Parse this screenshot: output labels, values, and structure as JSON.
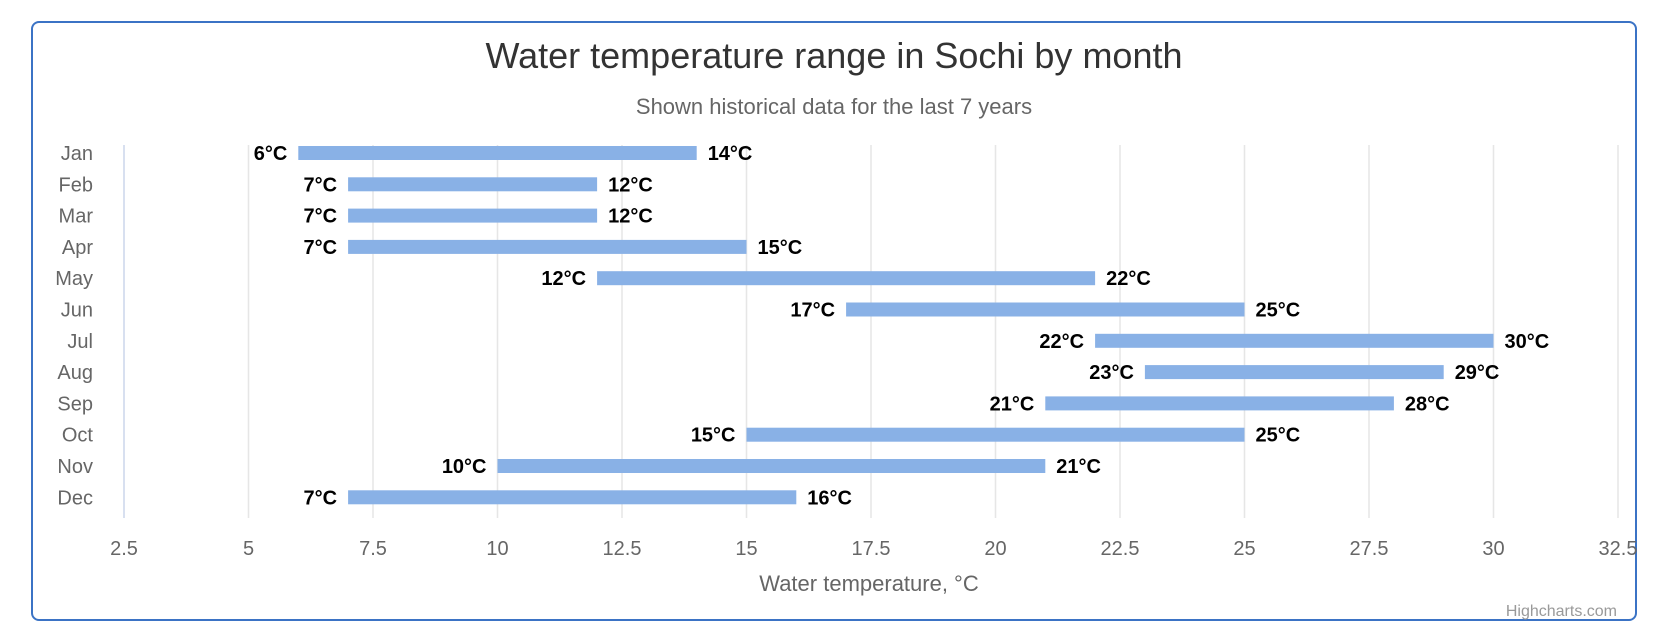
{
  "chart_data": {
    "type": "bar",
    "orientation": "horizontal",
    "variant": "columnrange",
    "title": "Water temperature range in Sochi by month",
    "subtitle": "Shown historical data for the last 7 years",
    "categories": [
      "Jan",
      "Feb",
      "Mar",
      "Apr",
      "May",
      "Jun",
      "Jul",
      "Aug",
      "Sep",
      "Oct",
      "Nov",
      "Dec"
    ],
    "series": [
      {
        "low": [
          6,
          7,
          7,
          7,
          12,
          17,
          22,
          23,
          21,
          15,
          10,
          7
        ],
        "high": [
          14,
          12,
          12,
          15,
          22,
          25,
          30,
          29,
          28,
          25,
          21,
          16
        ],
        "color": "#89b1e6"
      }
    ],
    "label_suffix": "°C",
    "xlabel": "Water temperature, °C",
    "xlim": [
      2.5,
      32.5
    ],
    "x_ticks": [
      "2.5",
      "5",
      "7.5",
      "10",
      "12.5",
      "15",
      "17.5",
      "20",
      "22.5",
      "25",
      "27.5",
      "30",
      "32.5"
    ],
    "grid": true,
    "legend": false
  },
  "credits": "Highcharts.com",
  "colors": {
    "bar": "#89b1e6",
    "grid": "#e6e6e6",
    "frame": "#3b73c5"
  }
}
